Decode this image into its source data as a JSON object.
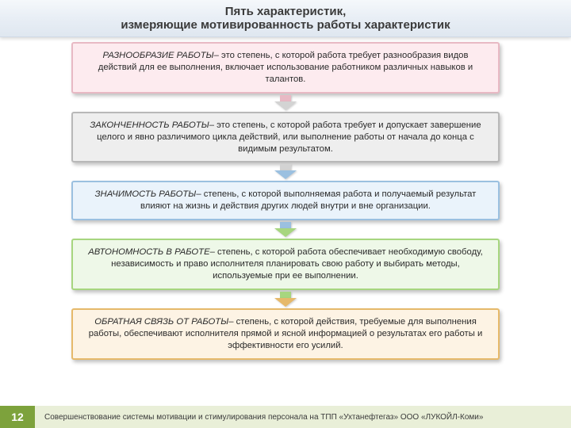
{
  "title_line1": "Пять характеристик,",
  "title_line2": "измеряющие  мотивированность работы характеристик",
  "title_color": "#3a3a3a",
  "title_bg_from": "#f5f8fb",
  "title_bg_to": "#dfe7f0",
  "boxes": [
    {
      "term": "РАЗНООБРАЗИЕ РАБОТЫ",
      "definition": "– это степень, с которой работа требует разнообразия видов действий для ее выполнения, включает использование работником различных навыков и талантов.",
      "bg": "#fdebef",
      "border": "#e8b9c4"
    },
    {
      "term": "ЗАКОНЧЕННОСТЬ РАБОТЫ",
      "definition": "– это степень, с которой работа требует и допускает завершение целого и явно различимого цикла действий, или выполнение работы от начала до конца с видимым результатом.",
      "bg": "#eeeeee",
      "border": "#b8b8b8"
    },
    {
      "term": "ЗНАЧИМОСТЬ РАБОТЫ",
      "definition": "– степень, с которой выполняемая работа и получаемый результат влияют на жизнь и действия других людей внутри и вне организации.",
      "bg": "#eaf3fb",
      "border": "#9bc0e0"
    },
    {
      "term": "АВТОНОМНОСТЬ В РАБОТЕ",
      "definition": "– степень, с которой работа обеспечивает необходимую свободу, независимость и право исполнителя планировать свою работу и выбирать методы, используемые при ее выполнении.",
      "bg": "#eef8e8",
      "border": "#a7d67f"
    },
    {
      "term": "ОБРАТНАЯ СВЯЗЬ ОТ РАБОТЫ",
      "definition": "– степень, с которой действия, требуемые для выполнения работы, обеспечивают исполнителя прямой и ясной информацией о результатах его работы и эффективности его усилий.",
      "bg": "#fdf3e4",
      "border": "#e6b96a"
    }
  ],
  "arrows": [
    {
      "stem": "#e8b9c4",
      "head": "#d3d3d3"
    },
    {
      "stem": "#d3d3d3",
      "head": "#9bc0e0"
    },
    {
      "stem": "#9bc0e0",
      "head": "#a7d67f"
    },
    {
      "stem": "#a7d67f",
      "head": "#e6b96a"
    }
  ],
  "footer": {
    "page_number": "12",
    "page_bg": "#7da23c",
    "text": "Совершенствование  системы мотивации  и стимулирования персонала на ТПП «Ухтанефтегаз» ООО «ЛУКОЙЛ-Коми»",
    "bar_bg": "#e9efd8"
  }
}
